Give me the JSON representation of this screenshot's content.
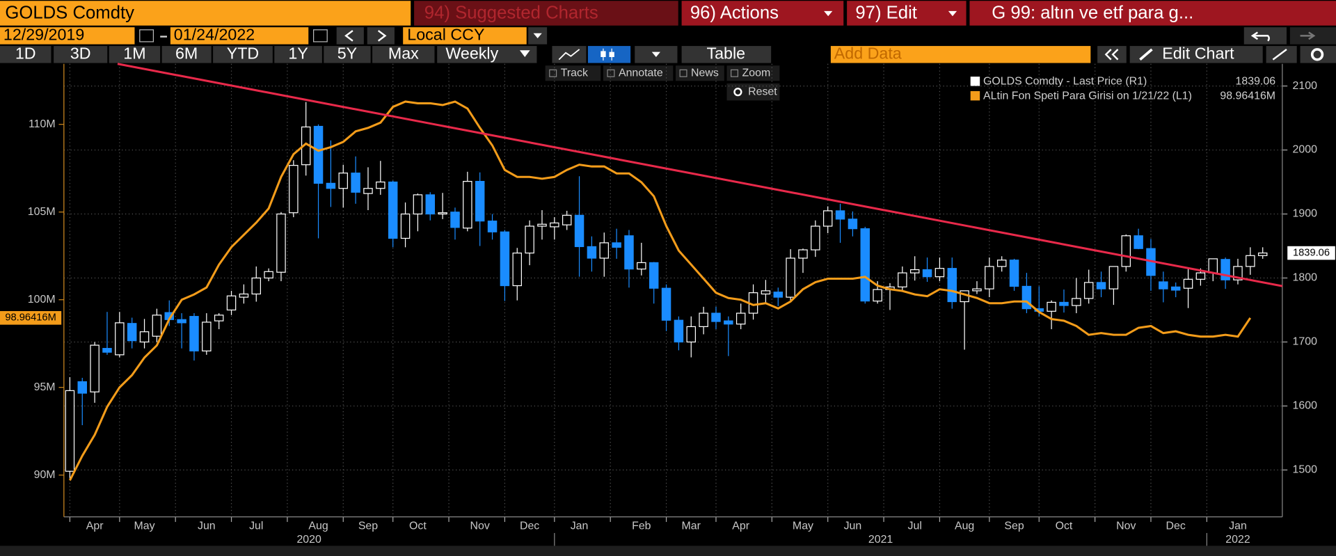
{
  "toolbar": {
    "security": "GOLDS Comdty",
    "suggested": "94) Suggested Charts",
    "actions": "96) Actions",
    "edit": "97) Edit",
    "chart_title": "G 99: altın ve etf para g...",
    "start_date": "12/29/2019",
    "end_date": "01/24/2022",
    "currency": "Local CCY",
    "periods": [
      "1D",
      "3D",
      "1M",
      "6M",
      "YTD",
      "1Y",
      "5Y",
      "Max"
    ],
    "frequency": "Weekly",
    "table": "Table",
    "add_data": "Add Data",
    "edit_chart": "Edit Chart",
    "tools": [
      "Track",
      "Annotate",
      "News",
      "Zoom"
    ],
    "reset": "Reset"
  },
  "chart_data": {
    "type": "candlestick",
    "categories": [
      null,
      null,
      "Apr",
      null,
      null,
      null,
      "May",
      null,
      null,
      null,
      null,
      "Jun",
      null,
      null,
      null,
      "Jul",
      null,
      null,
      null,
      null,
      "Aug",
      null,
      null,
      null,
      "Sep",
      null,
      null,
      null,
      "Oct",
      null,
      null,
      null,
      null,
      "Nov",
      null,
      null,
      null,
      "Dec",
      null,
      null,
      null,
      "Jan",
      null,
      null,
      null,
      null,
      "Feb",
      null,
      null,
      null,
      "Mar",
      null,
      null,
      null,
      "Apr",
      null,
      null,
      null,
      null,
      "May",
      null,
      null,
      null,
      "Jun",
      null,
      null,
      null,
      null,
      "Jul",
      null,
      null,
      null,
      "Aug",
      null,
      null,
      null,
      "Sep",
      null,
      null,
      null,
      "Oct",
      null,
      null,
      null,
      null,
      "Nov",
      null,
      null,
      null,
      "Dec",
      null,
      null,
      null,
      null,
      "Jan",
      null,
      null
    ],
    "years": [
      "2020",
      "2021",
      "2022"
    ],
    "series": [
      {
        "name": "GOLDS Comdty - Last Price (R1)",
        "type": "candlestick",
        "axis": "y2",
        "up_color": "#ffffff",
        "down_color": "#1a8cff",
        "open": [
          1498,
          1638,
          1622,
          1690,
          1680,
          1729,
          1700,
          1709,
          1746,
          1735,
          1740,
          1686,
          1733,
          1750,
          1770,
          1775,
          1800,
          1809,
          1902,
          1977,
          2037,
          1948,
          1940,
          1964,
          1932,
          1940,
          1950,
          1862,
          1900,
          1930,
          1900,
          1903,
          1878,
          1951,
          1889,
          1872,
          1788,
          1839,
          1881,
          1880,
          1883,
          1898,
          1849,
          1831,
          1855,
          1866,
          1814,
          1824,
          1784,
          1734,
          1700,
          1724,
          1745,
          1733,
          1728,
          1745,
          1775,
          1778,
          1770,
          1831,
          1844,
          1881,
          1905,
          1892,
          1877,
          1764,
          1782,
          1786,
          1808,
          1813,
          1802,
          1815,
          1763,
          1780,
          1783,
          1818,
          1828,
          1787,
          1752,
          1748,
          1762,
          1757,
          1768,
          1793,
          1783,
          1818,
          1866,
          1846,
          1794,
          1786,
          1784,
          1798,
          1808,
          1829,
          1797,
          1818,
          1835
        ],
        "high": [
          1645,
          1644,
          1700,
          1747,
          1747,
          1738,
          1736,
          1752,
          1765,
          1745,
          1745,
          1745,
          1745,
          1780,
          1790,
          1818,
          1815,
          1903,
          1984,
          2075,
          2040,
          2015,
          1977,
          1990,
          1973,
          1983,
          1952,
          1918,
          1932,
          1934,
          1933,
          1910,
          1966,
          1965,
          1900,
          1875,
          1847,
          1890,
          1906,
          1895,
          1905,
          1959,
          1865,
          1871,
          1877,
          1875,
          1855,
          1825,
          1790,
          1740,
          1740,
          1755,
          1755,
          1740,
          1760,
          1790,
          1797,
          1785,
          1845,
          1846,
          1890,
          1912,
          1916,
          1904,
          1880,
          1795,
          1792,
          1818,
          1834,
          1832,
          1832,
          1832,
          1780,
          1795,
          1832,
          1834,
          1830,
          1808,
          1787,
          1765,
          1782,
          1800,
          1813,
          1810,
          1818,
          1868,
          1877,
          1861,
          1810,
          1793,
          1815,
          1815,
          1830,
          1832,
          1830,
          1848,
          1848
        ],
        "low": [
          1484,
          1570,
          1605,
          1680,
          1676,
          1690,
          1690,
          1700,
          1725,
          1690,
          1671,
          1680,
          1720,
          1742,
          1760,
          1763,
          1795,
          1795,
          1895,
          1960,
          1862,
          1911,
          1910,
          1916,
          1906,
          1930,
          1848,
          1848,
          1873,
          1890,
          1892,
          1860,
          1873,
          1850,
          1860,
          1764,
          1765,
          1820,
          1860,
          1860,
          1875,
          1802,
          1810,
          1802,
          1830,
          1785,
          1804,
          1760,
          1717,
          1687,
          1676,
          1712,
          1720,
          1678,
          1720,
          1735,
          1760,
          1756,
          1765,
          1808,
          1833,
          1870,
          1855,
          1865,
          1760,
          1760,
          1750,
          1780,
          1796,
          1794,
          1795,
          1752,
          1688,
          1775,
          1770,
          1810,
          1780,
          1745,
          1740,
          1720,
          1746,
          1745,
          1760,
          1770,
          1758,
          1810,
          1845,
          1780,
          1762,
          1770,
          1753,
          1788,
          1795,
          1783,
          1790,
          1805,
          1830
        ],
        "close": [
          1624,
          1620,
          1695,
          1684,
          1730,
          1702,
          1716,
          1742,
          1735,
          1730,
          1686,
          1731,
          1742,
          1772,
          1775,
          1800,
          1810,
          1900,
          1976,
          2036,
          1948,
          1940,
          1964,
          1934,
          1940,
          1950,
          1862,
          1900,
          1930,
          1900,
          1902,
          1879,
          1951,
          1889,
          1872,
          1788,
          1839,
          1881,
          1884,
          1886,
          1898,
          1849,
          1831,
          1855,
          1848,
          1814,
          1824,
          1784,
          1734,
          1700,
          1724,
          1745,
          1732,
          1728,
          1745,
          1777,
          1780,
          1770,
          1831,
          1844,
          1881,
          1905,
          1892,
          1877,
          1764,
          1782,
          1786,
          1808,
          1813,
          1802,
          1815,
          1763,
          1780,
          1783,
          1818,
          1828,
          1787,
          1752,
          1748,
          1762,
          1757,
          1768,
          1793,
          1783,
          1818,
          1866,
          1846,
          1804,
          1783,
          1781,
          1798,
          1808,
          1830,
          1797,
          1818,
          1835,
          1839.06
        ]
      },
      {
        "name": "ALtin Fon Speti Para Girisi on 1/21/22 (L1)",
        "type": "line",
        "axis": "y",
        "color": "#f39c1a",
        "values": [
          89.7,
          91.1,
          92.3,
          93.9,
          95.0,
          95.7,
          96.7,
          97.4,
          98.9,
          100.0,
          100.3,
          100.7,
          102.0,
          103.0,
          103.7,
          104.4,
          105.2,
          107.0,
          108.3,
          108.9,
          108.5,
          108.7,
          109.0,
          109.6,
          109.8,
          110.1,
          111.0,
          111.3,
          111.2,
          111.2,
          111.1,
          111.3,
          110.9,
          109.8,
          108.8,
          107.4,
          107.0,
          107.0,
          106.9,
          107.0,
          107.4,
          107.7,
          107.6,
          107.6,
          107.2,
          107.2,
          106.7,
          105.9,
          104.2,
          102.8,
          102.0,
          101.2,
          100.4,
          100.1,
          100.0,
          99.7,
          99.8,
          99.5,
          99.9,
          100.6,
          101.0,
          101.2,
          101.2,
          101.2,
          101.3,
          100.8,
          100.6,
          100.5,
          100.3,
          100.2,
          100.6,
          100.5,
          100.3,
          100.1,
          99.8,
          99.8,
          99.9,
          99.9,
          99.3,
          98.9,
          98.8,
          98.5,
          98.0,
          98.1,
          98.0,
          98.0,
          98.4,
          98.5,
          98.1,
          98.2,
          98.0,
          97.9,
          97.9,
          98.0,
          97.9,
          98.96416,
          null
        ],
        "last_value_label": "98.96416M"
      }
    ],
    "ylim": [
      87.62,
      113.45
    ],
    "yticks": [
      {
        "value": 90,
        "label": "90M"
      },
      {
        "value": 95,
        "label": "95M"
      },
      {
        "value": 100,
        "label": "100M"
      },
      {
        "value": 105,
        "label": "105M"
      },
      {
        "value": 110,
        "label": "110M"
      }
    ],
    "y2lim": [
      1426.8,
      2134.6
    ],
    "y2ticks": [
      1500,
      1600,
      1700,
      1800,
      1900,
      2000,
      2100
    ],
    "grid": true,
    "legend": "upper right"
  }
}
